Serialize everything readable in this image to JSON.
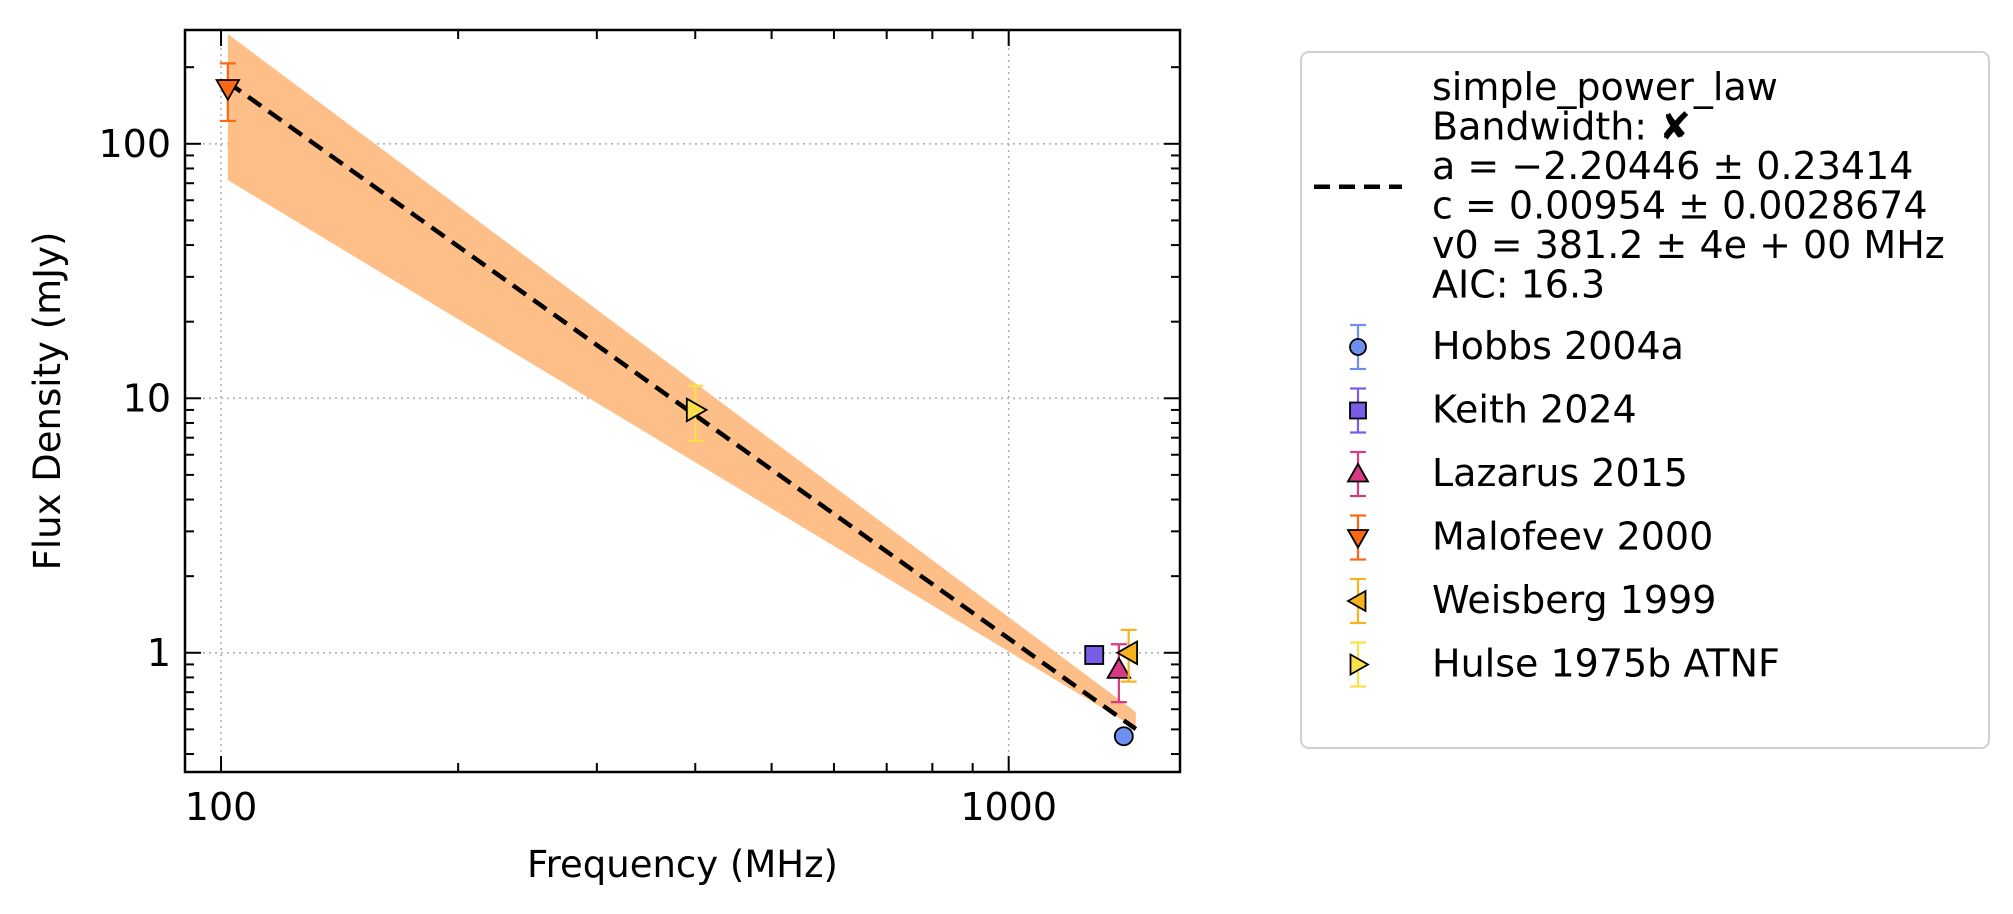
{
  "chart_data": {
    "type": "scatter",
    "title": "",
    "xlabel": "Frequency (MHz)",
    "ylabel": "Flux Density (mJy)",
    "xscale": "log",
    "yscale": "log",
    "xlim": [
      90,
      1650
    ],
    "ylim": [
      0.34,
      280
    ],
    "x_ticks": [
      100,
      1000
    ],
    "x_tick_labels": [
      "100",
      "1000"
    ],
    "y_ticks": [
      1,
      10,
      100
    ],
    "y_tick_labels": [
      "1",
      "10",
      "100"
    ],
    "grid": true,
    "legend_position": "outside-right",
    "fit": {
      "model": "simple_power_law",
      "label_lines": [
        "simple_power_law",
        "Bandwidth: ✘",
        "a = −2.20446 ± 0.23414",
        "c = 0.00954 ± 0.0028674",
        "v0 = 381.2 ± 4e + 00 MHz",
        "AIC: 16.3"
      ],
      "a": -2.20446,
      "c": 0.00954,
      "v0": 381.2,
      "x_range": [
        102,
        1450
      ],
      "band": {
        "x": [
          102,
          1450
        ],
        "upper": [
          270,
          0.585
        ],
        "lower": [
          72,
          0.505
        ]
      },
      "color": "#000000",
      "band_color": "#fdbf87"
    },
    "series": [
      {
        "name": "Hobbs 2004a",
        "marker": "circle",
        "color": "#6f8ff0",
        "edge": "#000000",
        "points": [
          {
            "x": 1400,
            "y": 0.47,
            "yerr_low": 0.47,
            "yerr_high": 0.47
          }
        ]
      },
      {
        "name": "Keith 2024",
        "marker": "square",
        "color": "#7a5ce6",
        "edge": "#000000",
        "points": [
          {
            "x": 1284,
            "y": 0.98,
            "yerr_low": 0.98,
            "yerr_high": 0.98
          }
        ]
      },
      {
        "name": "Lazarus 2015",
        "marker": "triangle-up",
        "color": "#d63a82",
        "edge": "#000000",
        "points": [
          {
            "x": 1380,
            "y": 0.86,
            "yerr_low": 0.64,
            "yerr_high": 1.08
          }
        ]
      },
      {
        "name": "Malofeev 2000",
        "marker": "triangle-down",
        "color": "#f96815",
        "edge": "#000000",
        "points": [
          {
            "x": 102,
            "y": 165,
            "yerr_low": 123,
            "yerr_high": 207
          }
        ]
      },
      {
        "name": "Weisberg 1999",
        "marker": "triangle-left",
        "color": "#f7b21d",
        "edge": "#000000",
        "points": [
          {
            "x": 1420,
            "y": 1.0,
            "yerr_low": 0.77,
            "yerr_high": 1.23
          }
        ]
      },
      {
        "name": "Hulse 1975b ATNF",
        "marker": "triangle-right",
        "color": "#fbe04c",
        "edge": "#000000",
        "points": [
          {
            "x": 400,
            "y": 9.0,
            "yerr_low": 6.8,
            "yerr_high": 11.2
          }
        ]
      }
    ]
  }
}
